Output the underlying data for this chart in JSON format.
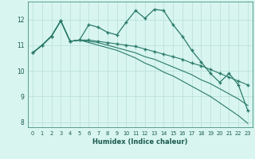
{
  "xlabel": "Humidex (Indice chaleur)",
  "xlim": [
    -0.5,
    23.5
  ],
  "ylim": [
    7.8,
    12.7
  ],
  "xticks": [
    0,
    1,
    2,
    3,
    4,
    5,
    6,
    7,
    8,
    9,
    10,
    11,
    12,
    13,
    14,
    15,
    16,
    17,
    18,
    19,
    20,
    21,
    22,
    23
  ],
  "yticks": [
    8,
    9,
    10,
    11,
    12
  ],
  "background_color": "#d8f5f0",
  "grid_color": "#b8ddd8",
  "line_color": "#2a7a6a",
  "line1": [
    10.7,
    11.0,
    11.35,
    11.95,
    11.15,
    11.2,
    11.8,
    11.7,
    11.5,
    11.4,
    11.9,
    12.35,
    12.05,
    12.4,
    12.35,
    11.8,
    11.35,
    10.8,
    10.35,
    9.9,
    9.55,
    9.9,
    9.45,
    8.45
  ],
  "line2": [
    10.7,
    11.0,
    11.35,
    11.95,
    11.15,
    11.2,
    11.2,
    11.15,
    11.1,
    11.05,
    11.0,
    10.95,
    10.85,
    10.75,
    10.65,
    10.55,
    10.45,
    10.3,
    10.2,
    10.05,
    9.9,
    9.75,
    9.6,
    9.45
  ],
  "line3": [
    10.7,
    11.0,
    11.35,
    11.95,
    11.15,
    11.2,
    11.15,
    11.1,
    11.0,
    10.9,
    10.8,
    10.7,
    10.55,
    10.45,
    10.3,
    10.15,
    10.0,
    9.85,
    9.65,
    9.5,
    9.3,
    9.1,
    8.9,
    8.65
  ],
  "line4": [
    10.7,
    11.0,
    11.35,
    11.95,
    11.15,
    11.2,
    11.1,
    11.0,
    10.9,
    10.8,
    10.65,
    10.5,
    10.3,
    10.15,
    9.95,
    9.8,
    9.6,
    9.4,
    9.2,
    9.0,
    8.75,
    8.5,
    8.25,
    7.95
  ]
}
